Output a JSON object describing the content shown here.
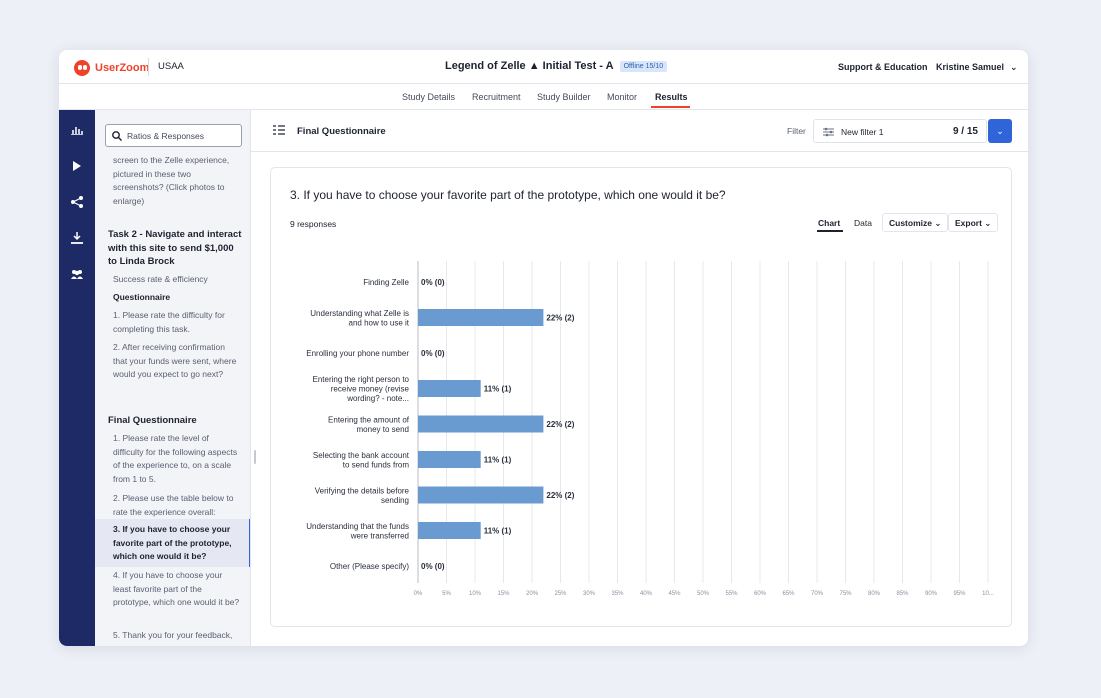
{
  "app": {
    "logo_text": "UserZoom",
    "org": "USAA",
    "study_title": "Legend of Zelle ▲ Initial Test - A",
    "status_badge": "Offline 15/10",
    "support_link": "Support & Education",
    "user_name": "Kristine Samuel"
  },
  "tabs": [
    {
      "label": "Study Details"
    },
    {
      "label": "Recruitment"
    },
    {
      "label": "Study Builder"
    },
    {
      "label": "Monitor"
    },
    {
      "label": "Results"
    }
  ],
  "sidebar": {
    "search_placeholder": "Ratios & Responses",
    "items": [
      {
        "text": "screen to the Zelle experience, pictured in these two screenshots? (Click photos to enlarge)"
      },
      {
        "text": "Task 2 - Navigate and interact with this site to send $1,000 to Linda Brock"
      },
      {
        "text": "Success rate & efficiency"
      },
      {
        "text": "Questionnaire"
      },
      {
        "text": "1. Please rate the difficulty for completing this task."
      },
      {
        "text": "2. After receiving confirmation that your funds were sent, where would you expect to go next?"
      },
      {
        "text": "Final Questionnaire"
      },
      {
        "text": "1. Please rate the level of difficulty for the following aspects of the experience to, on a scale from 1 to 5."
      },
      {
        "text": "2. Please use the table below to rate the experience overall:"
      },
      {
        "text": "3. If you have to choose your favorite part of the prototype, which one would it be?"
      },
      {
        "text": "4. If you have to choose your least favorite part of the prototype, which one would it be?"
      },
      {
        "text": "5. Thank you for your feedback,"
      }
    ]
  },
  "main": {
    "section_title": "Final Questionnaire",
    "filter_label": "Filter",
    "filter_name": "New filter 1",
    "filter_count": "9 / 15",
    "question": "3. If you have to choose your favorite part of the prototype, which one would it be?",
    "responses": "9 responses",
    "view_chart": "Chart",
    "view_data": "Data",
    "customize": "Customize",
    "export": "Export"
  },
  "colors": {
    "bar": "#6a9bd0",
    "accent": "#2f65d8",
    "brand": "#f0412b",
    "nav": "#1e2a66"
  },
  "chart_data": {
    "type": "bar",
    "orientation": "horizontal",
    "title": "3. If you have to choose your favorite part of the prototype, which one would it be?",
    "categories": [
      [
        "Finding Zelle"
      ],
      [
        "Understanding what Zelle is",
        "and how to use it"
      ],
      [
        "Enrolling your phone number"
      ],
      [
        "Entering the right person to",
        "receive money (revise",
        "wording? - note..."
      ],
      [
        "Entering the amount of",
        "money to send"
      ],
      [
        "Selecting the bank account",
        "to send funds from"
      ],
      [
        "Verifying the details before",
        "sending"
      ],
      [
        "Understanding that the funds",
        "were transferred"
      ],
      [
        "Other (Please specify)"
      ]
    ],
    "values": [
      0,
      22,
      0,
      11,
      22,
      11,
      22,
      11,
      0
    ],
    "value_labels": [
      "0% (0)",
      "22% (2)",
      "0% (0)",
      "11% (1)",
      "22% (2)",
      "11% (1)",
      "22% (2)",
      "11% (1)",
      "0% (0)"
    ],
    "x_ticks": [
      "0%",
      "5%",
      "10%",
      "15%",
      "20%",
      "25%",
      "30%",
      "35%",
      "40%",
      "45%",
      "50%",
      "55%",
      "60%",
      "65%",
      "70%",
      "75%",
      "80%",
      "85%",
      "90%",
      "95%",
      "10..."
    ],
    "xlim": [
      0,
      100
    ],
    "grid": true
  }
}
